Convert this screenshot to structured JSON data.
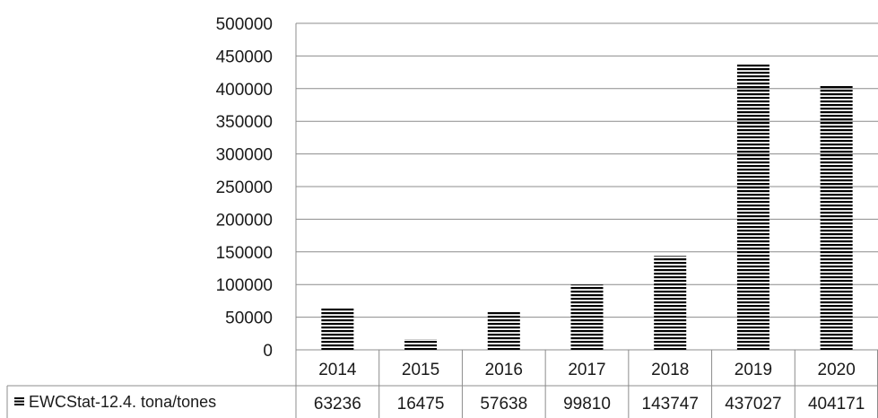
{
  "chart_data": {
    "type": "bar",
    "categories": [
      "2014",
      "2015",
      "2016",
      "2017",
      "2018",
      "2019",
      "2020"
    ],
    "series": [
      {
        "name": "EWCStat-12.4. tona/tones",
        "values": [
          63236,
          16475,
          57638,
          99810,
          143747,
          437027,
          404171
        ],
        "value_labels": [
          "63236",
          "16475",
          "57638",
          "99810",
          "143747",
          "437027",
          "404171"
        ],
        "pattern": "horizontal-stripes",
        "color": "#000000"
      }
    ],
    "y_ticks": [
      "500000",
      "450000",
      "400000",
      "350000",
      "300000",
      "250000",
      "200000",
      "150000",
      "100000",
      "50000",
      "0"
    ],
    "ylim": [
      0,
      500000
    ],
    "grid": true,
    "legend": "data-table-left",
    "data_table": true
  }
}
